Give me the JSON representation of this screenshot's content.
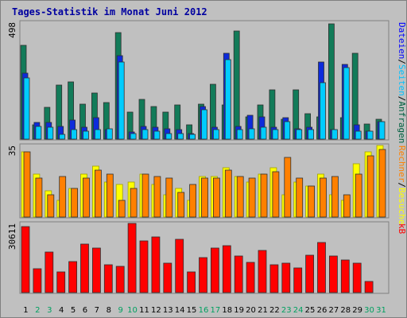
{
  "chart_data": {
    "type": "bar",
    "title": "Tages-Statistik im Monat Juni 2012",
    "x": [
      "1",
      "2",
      "3",
      "4",
      "5",
      "6",
      "7",
      "8",
      "9",
      "10",
      "11",
      "12",
      "13",
      "14",
      "15",
      "16",
      "17",
      "18",
      "19",
      "20",
      "21",
      "22",
      "23",
      "24",
      "25",
      "26",
      "27",
      "28",
      "29",
      "30",
      "31"
    ],
    "weekend_days": [
      2,
      3,
      9,
      10,
      16,
      17,
      23,
      24,
      30,
      31
    ],
    "panels": [
      {
        "label_parts": [
          "Dateien",
          "/",
          "Seiten",
          "/",
          "Anfragen"
        ],
        "label_colors": [
          "#0000ff",
          "#000000",
          "#00c0ff",
          "#000000",
          "#006040"
        ],
        "ymax_label": "498",
        "ymax": 498,
        "series": [
          {
            "name": "Anfragen",
            "color": "#127b59",
            "values": [
              400,
              60,
              135,
              230,
              245,
              150,
              195,
              155,
              455,
              115,
              170,
              140,
              115,
              145,
              60,
              150,
              235,
              145,
              460,
              95,
              145,
              210,
              85,
              210,
              110,
              95,
              490,
              90,
              365,
              65,
              85
            ]
          },
          {
            "name": "Dateien",
            "color": "#0d2bdb",
            "values": [
              280,
              70,
              70,
              55,
              80,
              50,
              90,
              40,
              355,
              30,
              55,
              50,
              45,
              40,
              25,
              140,
              50,
              365,
              55,
              100,
              95,
              50,
              90,
              45,
              50,
              330,
              40,
              320,
              60,
              35,
              75
            ]
          },
          {
            "name": "Seiten",
            "color": "#00ccff",
            "values": [
              260,
              55,
              50,
              20,
              40,
              35,
              40,
              45,
              330,
              25,
              40,
              35,
              25,
              25,
              20,
              125,
              40,
              340,
              40,
              45,
              50,
              40,
              75,
              40,
              40,
              240,
              40,
              305,
              35,
              35,
              75
            ]
          }
        ]
      },
      {
        "label_parts": [
          "Rechner",
          "/",
          "Besuche"
        ],
        "label_colors": [
          "#ff8000",
          "#000000",
          "#ffff00"
        ],
        "ymax_label": "35",
        "ymax": 35,
        "series": [
          {
            "name": "Besuche",
            "color": "#ffff00",
            "values": [
              32,
              21,
              13,
              8,
              14,
              21,
              25,
              17,
              16,
              17,
              21,
              16,
              11,
              14,
              8,
              20,
              20,
              24,
              20,
              17,
              21,
              24,
              11,
              17,
              15,
              21,
              11,
              8,
              26,
              32,
              35
            ]
          },
          {
            "name": "Rechner",
            "color": "#ff8000",
            "values": [
              32,
              19,
              11,
              20,
              14,
              19,
              23,
              21,
              8,
              14,
              21,
              20,
              19,
              12,
              16,
              19,
              19,
              23,
              20,
              19,
              21,
              22,
              29,
              19,
              15,
              19,
              20,
              11,
              21,
              30,
              33
            ]
          }
        ]
      },
      {
        "label_parts": [
          "kB"
        ],
        "label_colors": [
          "#ff0000"
        ],
        "ymax_label": "30611",
        "ymax": 30611,
        "series": [
          {
            "name": "kB",
            "color": "#ff0000",
            "values": [
              29200,
              10500,
              17900,
              9300,
              13700,
              21400,
              19600,
              12400,
              11700,
              30600,
              22700,
              24500,
              12900,
              23600,
              9200,
              15500,
              19800,
              20800,
              16200,
              13300,
              18700,
              12400,
              13000,
              10800,
              16700,
              22200,
              16200,
              14500,
              12900,
              4800,
              0
            ]
          }
        ]
      }
    ]
  }
}
